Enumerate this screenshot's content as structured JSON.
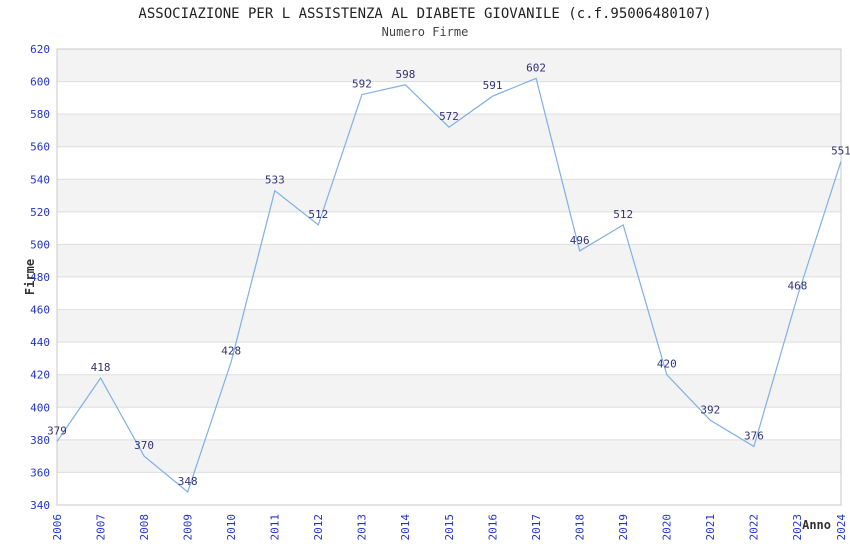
{
  "chart_data": {
    "type": "line",
    "title": "ASSOCIAZIONE PER L ASSISTENZA AL DIABETE GIOVANILE (c.f.95006480107)",
    "subtitle": "Numero Firme",
    "xlabel": "Anno",
    "ylabel": "Firme",
    "categories": [
      "2006",
      "2007",
      "2008",
      "2009",
      "2010",
      "2011",
      "2012",
      "2013",
      "2014",
      "2015",
      "2016",
      "2017",
      "2018",
      "2019",
      "2020",
      "2021",
      "2022",
      "2023",
      "2024"
    ],
    "values": [
      379,
      418,
      370,
      348,
      428,
      533,
      512,
      592,
      598,
      572,
      591,
      602,
      496,
      512,
      420,
      392,
      376,
      468,
      551
    ],
    "ylim": [
      340,
      620
    ],
    "ytick_step": 20,
    "grid": true,
    "legend": "none",
    "band_fill": "alternating-horizontal",
    "colors": {
      "line": "#7fb0e6",
      "data_label": "#333377",
      "tick_label": "#2233cc",
      "band": "#f3f3f3",
      "band_alt": "#ffffff",
      "gridline": "#dedede",
      "plot_border": "#c8c8c8",
      "title": "#222222",
      "axis_title": "#333333",
      "background": "#ffffff"
    }
  }
}
